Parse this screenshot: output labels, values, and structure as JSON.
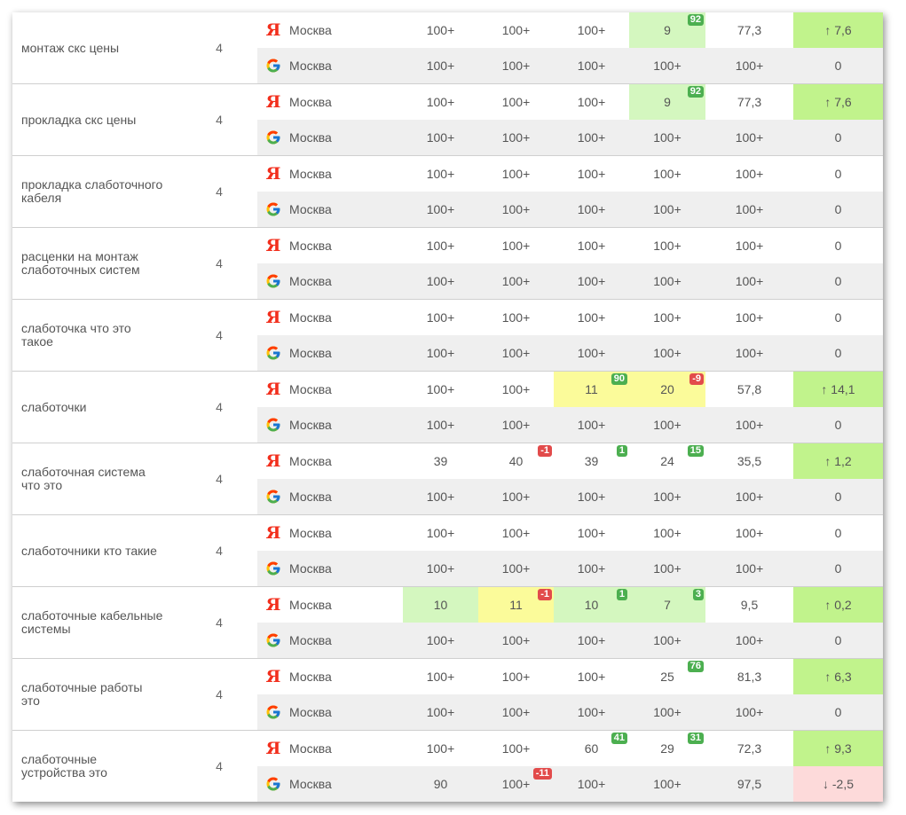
{
  "region": "Москва",
  "groups": [
    {
      "keyword": "монтаж скс цены",
      "freq": "4",
      "yandex": [
        {
          "v": "100+"
        },
        {
          "v": "100+"
        },
        {
          "v": "100+"
        },
        {
          "v": "9",
          "b": "92",
          "bt": "up",
          "hl": "green"
        },
        {
          "v": "77,3"
        },
        {
          "v": "↑ 7,6",
          "hl": "dgreen"
        }
      ],
      "google": [
        {
          "v": "100+"
        },
        {
          "v": "100+"
        },
        {
          "v": "100+"
        },
        {
          "v": "100+"
        },
        {
          "v": "100+"
        },
        {
          "v": "0"
        }
      ]
    },
    {
      "keyword": "прокладка скс цены",
      "freq": "4",
      "yandex": [
        {
          "v": "100+"
        },
        {
          "v": "100+"
        },
        {
          "v": "100+"
        },
        {
          "v": "9",
          "b": "92",
          "bt": "up",
          "hl": "green"
        },
        {
          "v": "77,3"
        },
        {
          "v": "↑ 7,6",
          "hl": "dgreen"
        }
      ],
      "google": [
        {
          "v": "100+"
        },
        {
          "v": "100+"
        },
        {
          "v": "100+"
        },
        {
          "v": "100+"
        },
        {
          "v": "100+"
        },
        {
          "v": "0"
        }
      ]
    },
    {
      "keyword": "прокладка слаботочного кабеля",
      "freq": "4",
      "yandex": [
        {
          "v": "100+"
        },
        {
          "v": "100+"
        },
        {
          "v": "100+"
        },
        {
          "v": "100+"
        },
        {
          "v": "100+"
        },
        {
          "v": "0"
        }
      ],
      "google": [
        {
          "v": "100+"
        },
        {
          "v": "100+"
        },
        {
          "v": "100+"
        },
        {
          "v": "100+"
        },
        {
          "v": "100+"
        },
        {
          "v": "0"
        }
      ]
    },
    {
      "keyword": "расценки на монтаж слаботочных систем",
      "freq": "4",
      "yandex": [
        {
          "v": "100+"
        },
        {
          "v": "100+"
        },
        {
          "v": "100+"
        },
        {
          "v": "100+"
        },
        {
          "v": "100+"
        },
        {
          "v": "0"
        }
      ],
      "google": [
        {
          "v": "100+"
        },
        {
          "v": "100+"
        },
        {
          "v": "100+"
        },
        {
          "v": "100+"
        },
        {
          "v": "100+"
        },
        {
          "v": "0"
        }
      ]
    },
    {
      "keyword": "слаботочка что это такое",
      "freq": "4",
      "yandex": [
        {
          "v": "100+"
        },
        {
          "v": "100+"
        },
        {
          "v": "100+"
        },
        {
          "v": "100+"
        },
        {
          "v": "100+"
        },
        {
          "v": "0"
        }
      ],
      "google": [
        {
          "v": "100+"
        },
        {
          "v": "100+"
        },
        {
          "v": "100+"
        },
        {
          "v": "100+"
        },
        {
          "v": "100+"
        },
        {
          "v": "0"
        }
      ]
    },
    {
      "keyword": "слаботочки",
      "freq": "4",
      "yandex": [
        {
          "v": "100+"
        },
        {
          "v": "100+"
        },
        {
          "v": "11",
          "b": "90",
          "bt": "up",
          "hl": "yellow"
        },
        {
          "v": "20",
          "b": "-9",
          "bt": "down",
          "hl": "yellow"
        },
        {
          "v": "57,8"
        },
        {
          "v": "↑ 14,1",
          "hl": "dgreen"
        }
      ],
      "google": [
        {
          "v": "100+"
        },
        {
          "v": "100+"
        },
        {
          "v": "100+"
        },
        {
          "v": "100+"
        },
        {
          "v": "100+"
        },
        {
          "v": "0"
        }
      ]
    },
    {
      "keyword": "слаботочная система что это",
      "freq": "4",
      "yandex": [
        {
          "v": "39"
        },
        {
          "v": "40",
          "b": "-1",
          "bt": "down"
        },
        {
          "v": "39",
          "b": "1",
          "bt": "up"
        },
        {
          "v": "24",
          "b": "15",
          "bt": "up"
        },
        {
          "v": "35,5"
        },
        {
          "v": "↑ 1,2",
          "hl": "dgreen"
        }
      ],
      "google": [
        {
          "v": "100+"
        },
        {
          "v": "100+"
        },
        {
          "v": "100+"
        },
        {
          "v": "100+"
        },
        {
          "v": "100+"
        },
        {
          "v": "0"
        }
      ]
    },
    {
      "keyword": "слаботочники кто такие",
      "freq": "4",
      "yandex": [
        {
          "v": "100+"
        },
        {
          "v": "100+"
        },
        {
          "v": "100+"
        },
        {
          "v": "100+"
        },
        {
          "v": "100+"
        },
        {
          "v": "0"
        }
      ],
      "google": [
        {
          "v": "100+"
        },
        {
          "v": "100+"
        },
        {
          "v": "100+"
        },
        {
          "v": "100+"
        },
        {
          "v": "100+"
        },
        {
          "v": "0"
        }
      ]
    },
    {
      "keyword": "слаботочные кабельные системы",
      "freq": "4",
      "yandex": [
        {
          "v": "10",
          "hl": "green"
        },
        {
          "v": "11",
          "b": "-1",
          "bt": "down",
          "hl": "yellow"
        },
        {
          "v": "10",
          "b": "1",
          "bt": "up",
          "hl": "green"
        },
        {
          "v": "7",
          "b": "3",
          "bt": "up",
          "hl": "green"
        },
        {
          "v": "9,5"
        },
        {
          "v": "↑ 0,2",
          "hl": "dgreen"
        }
      ],
      "google": [
        {
          "v": "100+"
        },
        {
          "v": "100+"
        },
        {
          "v": "100+"
        },
        {
          "v": "100+"
        },
        {
          "v": "100+"
        },
        {
          "v": "0"
        }
      ]
    },
    {
      "keyword": "слаботочные работы это",
      "freq": "4",
      "yandex": [
        {
          "v": "100+"
        },
        {
          "v": "100+"
        },
        {
          "v": "100+"
        },
        {
          "v": "25",
          "b": "76",
          "bt": "up"
        },
        {
          "v": "81,3"
        },
        {
          "v": "↑ 6,3",
          "hl": "dgreen"
        }
      ],
      "google": [
        {
          "v": "100+"
        },
        {
          "v": "100+"
        },
        {
          "v": "100+"
        },
        {
          "v": "100+"
        },
        {
          "v": "100+"
        },
        {
          "v": "0"
        }
      ]
    },
    {
      "keyword": "слаботочные устройства это",
      "freq": "4",
      "yandex": [
        {
          "v": "100+"
        },
        {
          "v": "100+"
        },
        {
          "v": "60",
          "b": "41",
          "bt": "up"
        },
        {
          "v": "29",
          "b": "31",
          "bt": "up"
        },
        {
          "v": "72,3"
        },
        {
          "v": "↑ 9,3",
          "hl": "dgreen"
        }
      ],
      "google": [
        {
          "v": "90"
        },
        {
          "v": "100+",
          "b": "-11",
          "bt": "down"
        },
        {
          "v": "100+"
        },
        {
          "v": "100+"
        },
        {
          "v": "97,5"
        },
        {
          "v": "↓ -2,5",
          "hl": "red"
        }
      ]
    }
  ],
  "icons": {
    "yandex": "yandex-icon",
    "google": "google-icon"
  },
  "colors": {
    "badge_up": "#4caf50",
    "badge_down": "#e24b4b",
    "highlight_green": "#d4f7bf",
    "highlight_yellow": "#fbfb9a",
    "trend_up": "#c1f38c",
    "trend_down": "#fddada"
  }
}
